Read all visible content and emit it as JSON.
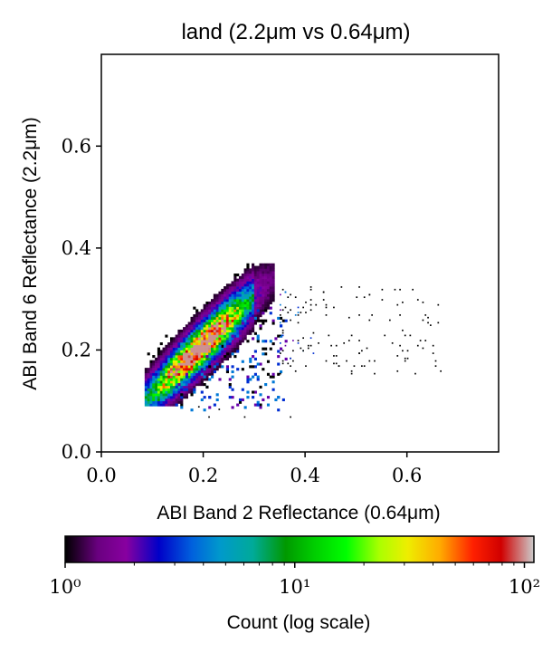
{
  "chart_data": {
    "type": "heatmap",
    "title": "land (2.2μm vs 0.64μm)",
    "xlabel": "ABI Band 2 Reflectance (0.64μm)",
    "ylabel": "ABI Band 6 Reflectance (2.2μm)",
    "xlim": [
      0.0,
      0.78
    ],
    "ylim": [
      0.0,
      0.78
    ],
    "xticks": [
      0.0,
      0.2,
      0.4,
      0.6
    ],
    "yticks": [
      0.0,
      0.2,
      0.4,
      0.6
    ],
    "xtick_labels": [
      "0.0",
      "0.2",
      "0.4",
      "0.6"
    ],
    "ytick_labels": [
      "0.0",
      "0.2",
      "0.4",
      "0.6"
    ],
    "grid": false,
    "colormap": "nipy_spectral",
    "colorbar": {
      "label": "Count (log scale)",
      "scale": "log",
      "range": [
        1,
        110
      ],
      "orientation": "horizontal",
      "ticks": [
        1,
        10,
        100
      ],
      "tick_labels": [
        "10⁰",
        "10¹",
        "10²"
      ]
    },
    "density_ridge": {
      "description_points": [
        [
          0.09,
          0.1
        ],
        [
          0.15,
          0.16
        ],
        [
          0.22,
          0.22
        ],
        [
          0.28,
          0.29
        ],
        [
          0.33,
          0.34
        ]
      ],
      "peak_count": 100
    },
    "sparse_tail_x_range": [
      0.35,
      0.67
    ],
    "sparse_tail_y_range": [
      0.15,
      0.32
    ]
  }
}
